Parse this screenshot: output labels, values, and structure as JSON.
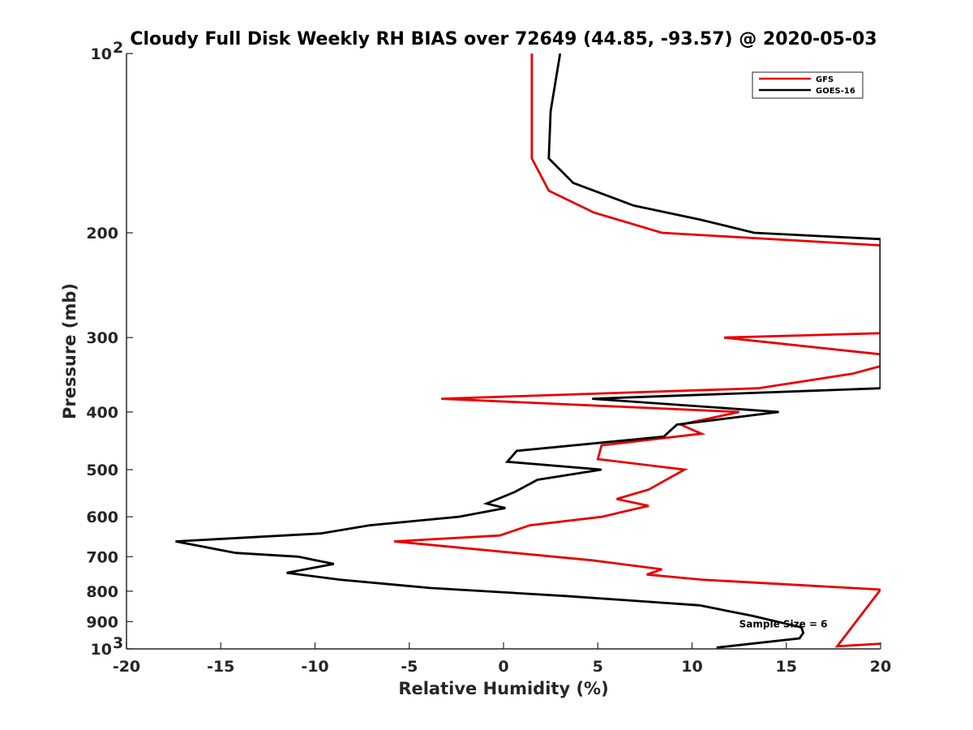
{
  "chart_data": {
    "type": "line",
    "title": "Cloudy Full Disk Weekly RH BIAS over 72649 (44.85, -93.57) @ 2020-05-03",
    "xlabel": "Relative Humidity (%)",
    "ylabel": "Pressure (mb)",
    "xlim": [
      -20,
      20
    ],
    "ylim": [
      100,
      1000
    ],
    "yscale": "log",
    "y_reversed": true,
    "grid": false,
    "legend_position": "top-right",
    "x_ticks": [
      -20,
      -15,
      -10,
      -5,
      0,
      5,
      10,
      15,
      20
    ],
    "x_tick_labels": [
      "-20",
      "-15",
      "-10",
      "-5",
      "0",
      "5",
      "10",
      "15",
      "20"
    ],
    "y_ticks": [
      100,
      200,
      300,
      400,
      500,
      600,
      700,
      800,
      900,
      1000
    ],
    "y_tick_labels": [
      {
        "base": "10",
        "exp": "2"
      },
      {
        "base": "200",
        "exp": ""
      },
      {
        "base": "300",
        "exp": ""
      },
      {
        "base": "400",
        "exp": ""
      },
      {
        "base": "500",
        "exp": ""
      },
      {
        "base": "600",
        "exp": ""
      },
      {
        "base": "700",
        "exp": ""
      },
      {
        "base": "800",
        "exp": ""
      },
      {
        "base": "900",
        "exp": ""
      },
      {
        "base": "10",
        "exp": "3"
      }
    ],
    "series": [
      {
        "name": "GFS",
        "color": "#e60000",
        "points": [
          {
            "x": 1.5,
            "y": 100
          },
          {
            "x": 1.5,
            "y": 125
          },
          {
            "x": 1.5,
            "y": 150
          },
          {
            "x": 2.4,
            "y": 170
          },
          {
            "x": 4.8,
            "y": 185
          },
          {
            "x": 8.4,
            "y": 200
          },
          {
            "x": 20,
            "y": 210
          },
          {
            "x": 20,
            "y": 295
          },
          {
            "x": 11.7,
            "y": 300
          },
          {
            "x": 20,
            "y": 320
          },
          {
            "x": 20,
            "y": 335
          },
          {
            "x": 18.5,
            "y": 345
          },
          {
            "x": 13.5,
            "y": 365
          },
          {
            "x": -3.3,
            "y": 380
          },
          {
            "x": 12.5,
            "y": 400
          },
          {
            "x": 9.4,
            "y": 420
          },
          {
            "x": 10.5,
            "y": 435
          },
          {
            "x": 5.2,
            "y": 455
          },
          {
            "x": 5.0,
            "y": 480
          },
          {
            "x": 9.6,
            "y": 500
          },
          {
            "x": 7.7,
            "y": 540
          },
          {
            "x": 6.0,
            "y": 560
          },
          {
            "x": 7.7,
            "y": 575
          },
          {
            "x": 5.2,
            "y": 600
          },
          {
            "x": 1.4,
            "y": 620
          },
          {
            "x": -0.2,
            "y": 645
          },
          {
            "x": -5.8,
            "y": 660
          },
          {
            "x": 4.7,
            "y": 710
          },
          {
            "x": 8.4,
            "y": 735
          },
          {
            "x": 7.6,
            "y": 750
          },
          {
            "x": 10.5,
            "y": 765
          },
          {
            "x": 20,
            "y": 795
          },
          {
            "x": 17.7,
            "y": 990
          },
          {
            "x": 20,
            "y": 980
          }
        ]
      },
      {
        "name": "GOES-16",
        "color": "#000000",
        "points": [
          {
            "x": 3.0,
            "y": 100
          },
          {
            "x": 2.5,
            "y": 125
          },
          {
            "x": 2.4,
            "y": 150
          },
          {
            "x": 3.7,
            "y": 165
          },
          {
            "x": 6.9,
            "y": 180
          },
          {
            "x": 10.4,
            "y": 190
          },
          {
            "x": 13.3,
            "y": 200
          },
          {
            "x": 20,
            "y": 205
          },
          {
            "x": 20,
            "y": 365
          },
          {
            "x": 4.7,
            "y": 380
          },
          {
            "x": 14.6,
            "y": 400
          },
          {
            "x": 9.2,
            "y": 420
          },
          {
            "x": 8.5,
            "y": 440
          },
          {
            "x": 0.7,
            "y": 465
          },
          {
            "x": 0.2,
            "y": 485
          },
          {
            "x": 5.2,
            "y": 500
          },
          {
            "x": 1.8,
            "y": 520
          },
          {
            "x": 0.6,
            "y": 545
          },
          {
            "x": -0.9,
            "y": 570
          },
          {
            "x": 0.1,
            "y": 580
          },
          {
            "x": -2.4,
            "y": 600
          },
          {
            "x": -7.1,
            "y": 620
          },
          {
            "x": -9.7,
            "y": 640
          },
          {
            "x": -17.4,
            "y": 660
          },
          {
            "x": -14.2,
            "y": 690
          },
          {
            "x": -10.9,
            "y": 700
          },
          {
            "x": -9.0,
            "y": 720
          },
          {
            "x": -11.5,
            "y": 745
          },
          {
            "x": -8.7,
            "y": 765
          },
          {
            "x": -3.9,
            "y": 790
          },
          {
            "x": 3.3,
            "y": 815
          },
          {
            "x": 10.4,
            "y": 845
          },
          {
            "x": 13.2,
            "y": 880
          },
          {
            "x": 15.8,
            "y": 920
          },
          {
            "x": 15.9,
            "y": 940
          },
          {
            "x": 15.7,
            "y": 960
          },
          {
            "x": 11.3,
            "y": 995
          }
        ]
      }
    ],
    "annotations": [
      {
        "text": "Sample Size = 6",
        "x": 12.5,
        "y": 920
      }
    ]
  }
}
